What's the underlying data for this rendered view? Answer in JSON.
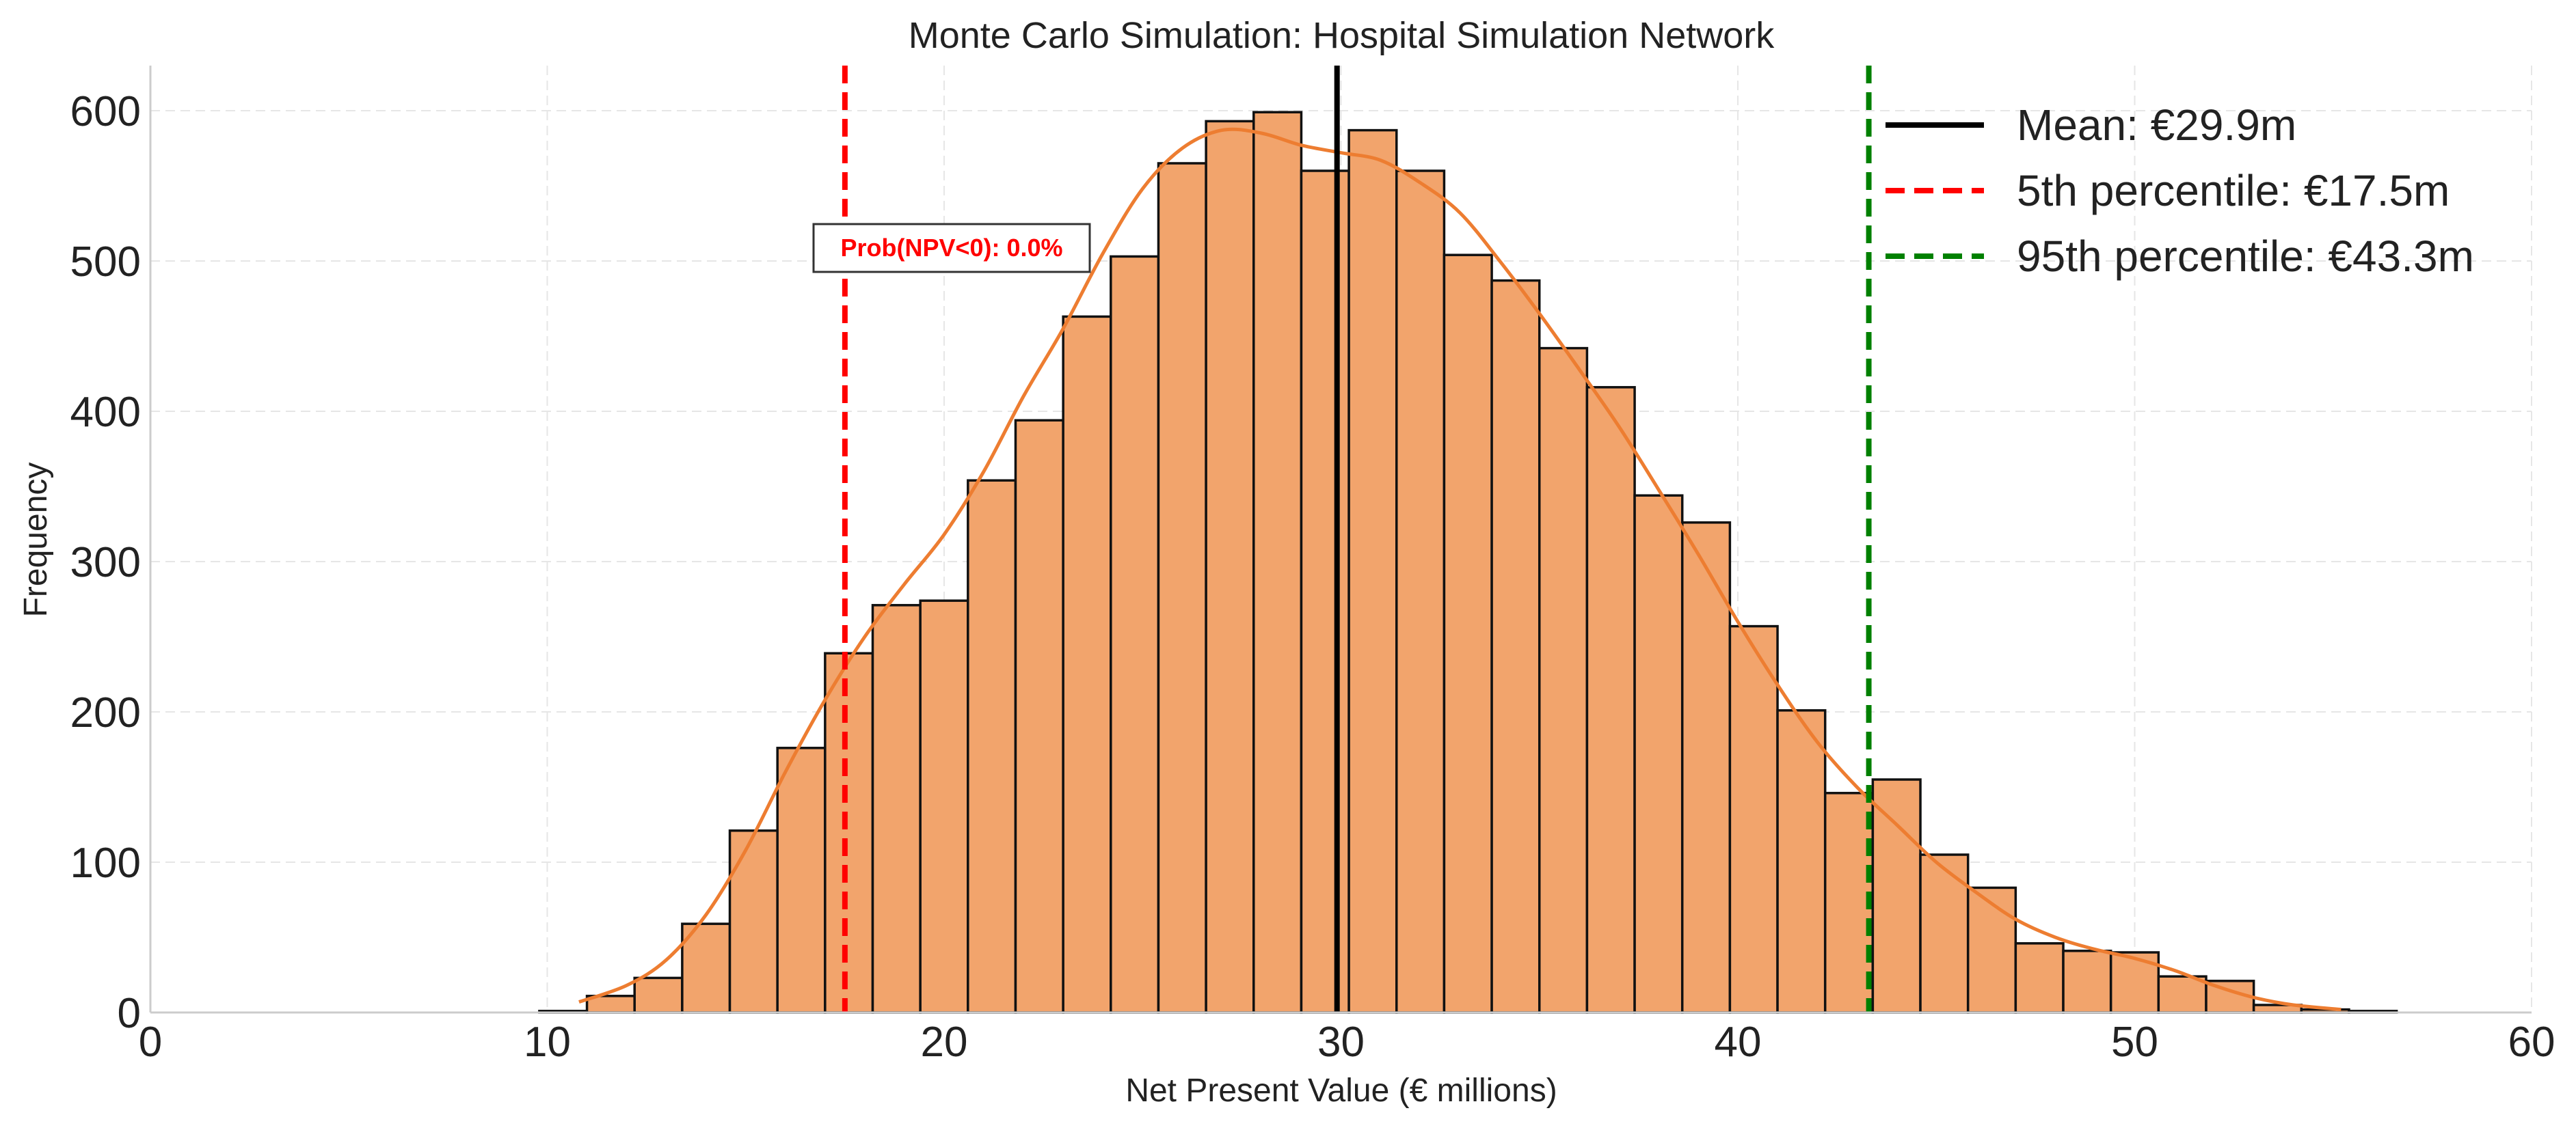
{
  "chart_data": {
    "type": "bar",
    "title": "Monte Carlo Simulation: Hospital Simulation Network",
    "xlabel": "Net Present Value (€ millions)",
    "ylabel": "Frequency",
    "xlim": [
      0,
      60
    ],
    "ylim": [
      0,
      630
    ],
    "xticks": [
      0,
      10,
      20,
      30,
      40,
      50,
      60
    ],
    "yticks": [
      0,
      100,
      200,
      300,
      400,
      500,
      600
    ],
    "grid": true,
    "bar_color": "#F2A46C",
    "bar_edge_color": "#111111",
    "kde_color": "#ED7D31",
    "bin_start": 9.8,
    "bin_width": 1.2,
    "values": [
      1,
      11,
      23,
      59,
      121,
      176,
      239,
      271,
      274,
      354,
      394,
      463,
      503,
      565,
      593,
      599,
      560,
      587,
      560,
      504,
      487,
      442,
      416,
      344,
      326,
      257,
      201,
      146,
      155,
      105,
      83,
      46,
      41,
      40,
      24,
      21,
      5,
      2,
      1
    ],
    "kde": {
      "x": [
        10.8,
        12,
        13,
        14,
        15,
        16,
        17,
        18,
        19,
        20,
        21,
        22,
        23,
        24,
        25,
        26,
        27,
        28,
        29,
        30,
        31,
        32,
        33,
        34,
        35,
        36,
        37,
        38,
        39,
        40,
        41,
        42,
        43,
        44,
        45,
        46,
        47,
        48,
        49,
        50,
        51,
        52,
        53,
        54,
        55.2
      ],
      "y": [
        7,
        18,
        35,
        65,
        108,
        160,
        208,
        250,
        285,
        318,
        360,
        410,
        455,
        505,
        548,
        575,
        587,
        585,
        577,
        572,
        567,
        552,
        532,
        500,
        465,
        428,
        390,
        348,
        305,
        260,
        218,
        180,
        150,
        125,
        100,
        80,
        62,
        50,
        42,
        36,
        28,
        18,
        10,
        5,
        2
      ]
    },
    "reference_lines": [
      {
        "name": "mean",
        "label": "Mean: €29.9m",
        "x": 29.9,
        "color": "#000000",
        "style": "solid"
      },
      {
        "name": "p5",
        "label": "5th percentile: €17.5m",
        "x": 17.5,
        "color": "#ff0000",
        "style": "dashed"
      },
      {
        "name": "p95",
        "label": "95th percentile: €43.3m",
        "x": 43.3,
        "color": "#008000",
        "style": "dashed"
      }
    ],
    "annotation": {
      "text": "Prob(NPV<0): 0.0%",
      "x": 17.5,
      "y": 505,
      "color": "#ff0000"
    },
    "legend_position": "top-right"
  }
}
